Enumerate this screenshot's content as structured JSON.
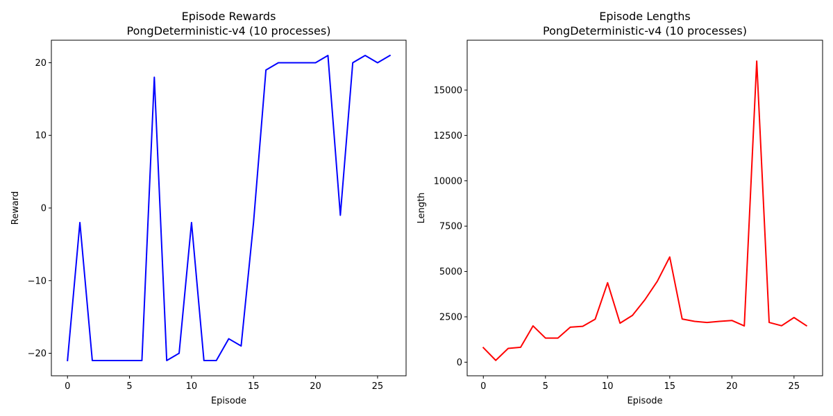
{
  "chart_data": [
    {
      "type": "line",
      "title": "Episode Rewards",
      "subtitle": "PongDeterministic-v4 (10 processes)",
      "xlabel": "Episode",
      "ylabel": "Reward",
      "xlim": [
        -1.3,
        27.3
      ],
      "ylim": [
        -23.1,
        23.1
      ],
      "xticks": [
        0,
        5,
        10,
        15,
        20,
        25
      ],
      "yticks": [
        -20,
        -10,
        0,
        10,
        20
      ],
      "ytick_labels": [
        "−20",
        "−10",
        "0",
        "10",
        "20"
      ],
      "grid": false,
      "legend": "none",
      "series": [
        {
          "color": "#0000ff",
          "x": [
            0,
            1,
            2,
            3,
            4,
            5,
            6,
            7,
            8,
            9,
            10,
            11,
            12,
            13,
            14,
            15,
            16,
            17,
            18,
            19,
            20,
            21,
            22,
            23,
            24,
            25,
            26
          ],
          "y": [
            -21,
            -2,
            -21,
            -21,
            -21,
            -21,
            -21,
            18,
            -21,
            -20,
            -2,
            -21,
            -21,
            -18,
            -19,
            -2,
            19,
            20,
            20,
            20,
            20,
            21,
            -1,
            20,
            21,
            20,
            21
          ]
        }
      ]
    },
    {
      "type": "line",
      "title": "Episode Lengths",
      "subtitle": "PongDeterministic-v4 (10 processes)",
      "xlabel": "Episode",
      "ylabel": "Length",
      "xlim": [
        -1.3,
        27.3
      ],
      "ylim": [
        -750,
        17750
      ],
      "xticks": [
        0,
        5,
        10,
        15,
        20,
        25
      ],
      "yticks": [
        0,
        2500,
        5000,
        7500,
        10000,
        12500,
        15000
      ],
      "ytick_labels": [
        "0",
        "2500",
        "5000",
        "7500",
        "10000",
        "12500",
        "15000"
      ],
      "grid": false,
      "legend": "none",
      "series": [
        {
          "color": "#ff0000",
          "x": [
            0,
            1,
            2,
            3,
            4,
            5,
            6,
            7,
            8,
            9,
            10,
            11,
            12,
            13,
            14,
            15,
            16,
            17,
            18,
            19,
            20,
            21,
            22,
            23,
            24,
            25,
            26
          ],
          "y": [
            800,
            100,
            760,
            820,
            2000,
            1330,
            1330,
            1930,
            1980,
            2370,
            4380,
            2150,
            2580,
            3440,
            4460,
            5800,
            2380,
            2250,
            2190,
            2250,
            2300,
            2000,
            16600,
            2190,
            2010,
            2460,
            2010
          ]
        }
      ]
    }
  ]
}
